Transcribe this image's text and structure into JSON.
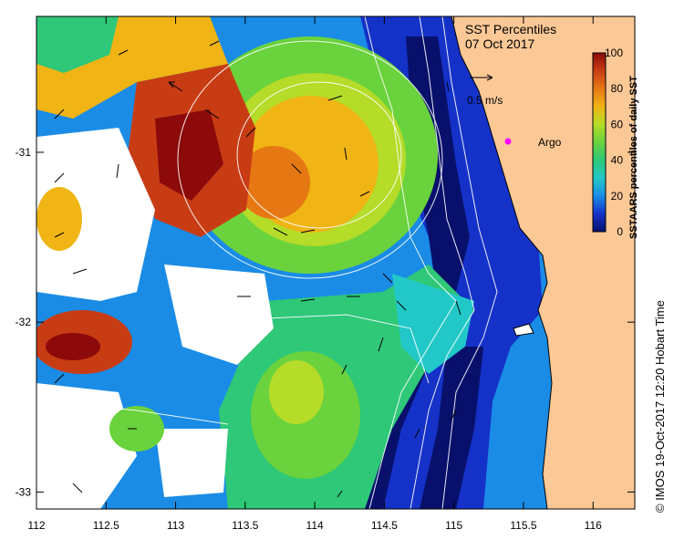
{
  "title": "SST Percentiles",
  "date": "07 Oct 2017",
  "credit": "© IMOS 19-Oct-2017 12:20 Hobart Time",
  "vector_scale_label": "0.5 m/s",
  "argo_label": "Argo",
  "colorbar": {
    "label": "SSTAARS percentiles of daily SST",
    "ticks": [
      "0",
      "20",
      "40",
      "60",
      "80",
      "100"
    ],
    "colors": [
      "#08106b",
      "#1432c8",
      "#1a8ce6",
      "#22c8c8",
      "#2ec878",
      "#6ad23c",
      "#b4dc28",
      "#f0b414",
      "#e67814",
      "#c83c14",
      "#8c0a0a"
    ]
  },
  "x_axis": {
    "ticks": [
      "112",
      "112.5",
      "113",
      "113.5",
      "114",
      "114.5",
      "115",
      "115.5",
      "116"
    ],
    "range": [
      112,
      116.3
    ]
  },
  "y_axis": {
    "ticks": [
      "-31",
      "-32",
      "-33"
    ],
    "range": [
      -33.1,
      -30.2
    ]
  },
  "colors": {
    "land": "#fcc896",
    "cloud": "#ffffff",
    "argo": "#ff00ff"
  }
}
